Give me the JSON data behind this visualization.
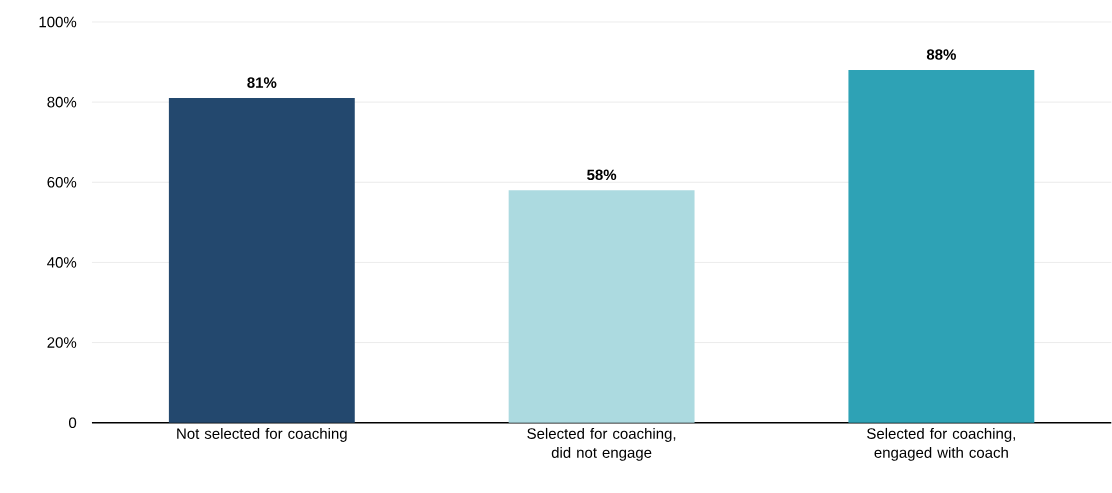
{
  "chart_data": {
    "type": "bar",
    "categories": [
      "Not selected for coaching",
      "Selected for coaching, did not engage",
      "Selected for coaching, engaged with coach"
    ],
    "values": [
      81,
      58,
      88
    ],
    "value_labels": [
      "81%",
      "58%",
      "88%"
    ],
    "colors": [
      "#23486e",
      "#acdae0",
      "#2ea2b5"
    ],
    "ylim": [
      0,
      100
    ],
    "yticks": [
      0,
      {
        "value": 20,
        "label": "20%"
      },
      {
        "value": 40,
        "label": "40%"
      },
      {
        "value": 60,
        "label": "60%"
      },
      {
        "value": 80,
        "label": "80%"
      },
      {
        "value": 100,
        "label": "100%"
      }
    ],
    "grid": "y"
  }
}
